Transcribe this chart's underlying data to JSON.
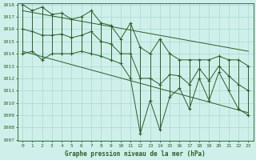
{
  "title": "Graphe pression niveau de la mer (hPa)",
  "hours": [
    0,
    1,
    2,
    3,
    4,
    5,
    6,
    7,
    8,
    9,
    10,
    11,
    12,
    13,
    14,
    15,
    16,
    17,
    18,
    19,
    20,
    21,
    22,
    23
  ],
  "pressure_high": [
    1018,
    1017.5,
    1017.8,
    1017.2,
    1017.3,
    1016.8,
    1017.0,
    1017.5,
    1016.5,
    1016.3,
    1015.2,
    1016.5,
    1014.5,
    1014.0,
    1015.2,
    1014.0,
    1013.5,
    1013.5,
    1013.5,
    1013.5,
    1013.8,
    1013.5,
    1013.5,
    1013.0
  ],
  "pressure_low": [
    1014.0,
    1014.2,
    1013.5,
    1014.0,
    1014.0,
    1014.0,
    1014.2,
    1014.0,
    1013.8,
    1013.5,
    1013.2,
    1012.0,
    1007.5,
    1010.2,
    1007.8,
    1010.5,
    1011.2,
    1009.5,
    1012.0,
    1010.2,
    1012.5,
    1011.0,
    1009.5,
    1009.0
  ],
  "pressure_mid": [
    1016.0,
    1015.8,
    1015.5,
    1015.5,
    1015.6,
    1015.3,
    1015.5,
    1015.8,
    1015.0,
    1014.8,
    1014.0,
    1014.0,
    1012.0,
    1012.0,
    1011.5,
    1012.3,
    1012.2,
    1011.5,
    1012.8,
    1011.8,
    1013.0,
    1012.2,
    1011.5,
    1011.0
  ],
  "trend1_x": [
    0,
    23
  ],
  "trend1_y": [
    1017.5,
    1014.2
  ],
  "trend2_x": [
    0,
    23
  ],
  "trend2_y": [
    1014.2,
    1009.2
  ],
  "bg_color": "#cff0ea",
  "grid_color": "#a8d8d0",
  "line_color": "#2a5e2a",
  "ylim": [
    1007,
    1018
  ],
  "yticks": [
    1007,
    1008,
    1009,
    1010,
    1011,
    1012,
    1013,
    1014,
    1015,
    1016,
    1017,
    1018
  ],
  "xlim": [
    -0.5,
    23.5
  ],
  "xlabel_fontsize": 5.5,
  "tick_fontsize": 4.5,
  "linewidth": 0.7,
  "marker_size": 3.5
}
